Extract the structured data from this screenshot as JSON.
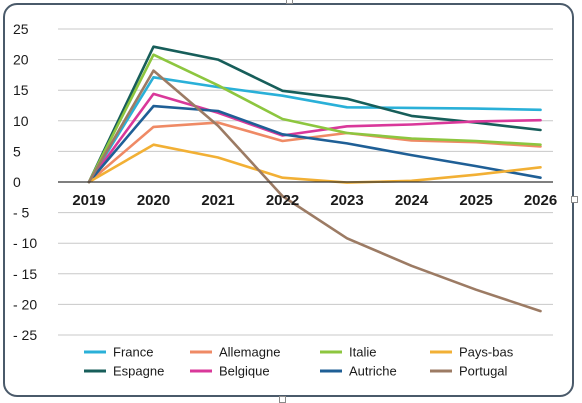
{
  "chart_data": {
    "type": "line",
    "title": "",
    "xlabel": "",
    "ylabel": "",
    "x": [
      "2019",
      "2020",
      "2021",
      "2022",
      "2023",
      "2024",
      "2025",
      "2026"
    ],
    "ylim": [
      -25,
      25
    ],
    "yticks": [
      "25",
      "20",
      "15",
      "10",
      "5",
      "0",
      "- 5",
      "- 10",
      "- 15",
      "- 20",
      "- 25"
    ],
    "ytick_values": [
      25,
      20,
      15,
      10,
      5,
      0,
      -5,
      -10,
      -15,
      -20,
      -25
    ],
    "grid": "horizontal",
    "legend_position": "bottom",
    "series": [
      {
        "name": "France",
        "color": "#2ab0d8",
        "values": [
          0,
          17.1,
          15.5,
          14.1,
          12.2,
          12.1,
          12.0,
          11.8
        ]
      },
      {
        "name": "Espagne",
        "color": "#175e5a",
        "values": [
          0,
          22.1,
          20.0,
          14.9,
          13.6,
          10.8,
          9.7,
          8.5
        ]
      },
      {
        "name": "Allemagne",
        "color": "#ef8a65",
        "values": [
          0,
          9.0,
          9.7,
          6.7,
          8.0,
          6.8,
          6.5,
          5.8
        ]
      },
      {
        "name": "Belgique",
        "color": "#d9389a",
        "values": [
          0,
          14.4,
          11.3,
          7.6,
          9.1,
          9.4,
          9.9,
          10.1
        ]
      },
      {
        "name": "Italie",
        "color": "#8dc63f",
        "values": [
          0,
          20.8,
          15.8,
          10.3,
          8.0,
          7.1,
          6.7,
          6.1
        ]
      },
      {
        "name": "Autriche",
        "color": "#1f5f96",
        "values": [
          0,
          12.4,
          11.6,
          7.8,
          6.3,
          4.4,
          2.6,
          0.7
        ]
      },
      {
        "name": "Pays-bas",
        "color": "#f2b035",
        "values": [
          0,
          6.1,
          4.0,
          0.7,
          -0.1,
          0.2,
          1.2,
          2.4
        ]
      },
      {
        "name": "Portugal",
        "color": "#9c7b64",
        "values": [
          0,
          18.2,
          9.2,
          -2.3,
          -9.2,
          -13.7,
          -17.6,
          -21.1
        ]
      }
    ]
  }
}
